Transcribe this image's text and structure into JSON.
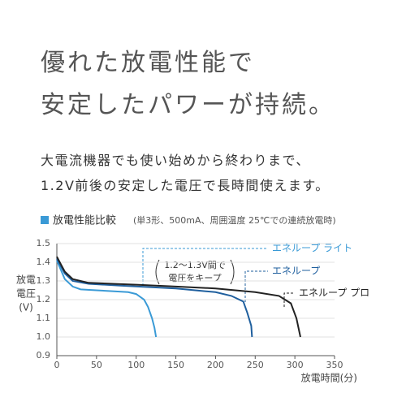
{
  "headline": [
    "優れた放電性能で",
    "安定したパワーが持続。"
  ],
  "body": [
    "大電流機器でも使い始めから終わりまで、",
    "1.2V前後の安定した電圧で長時間使えます。"
  ],
  "chart_data": {
    "type": "line",
    "title": "放電性能比較",
    "subtitle": "(単3形、500mA、周囲温度 25℃での連続放電時)",
    "ylabel": [
      "放電",
      "電圧",
      "(V)"
    ],
    "xlabel": "放電時間(分)",
    "annotation": [
      "1.2〜1.3V間で",
      "電圧をキープ"
    ],
    "xlim": [
      0,
      350
    ],
    "xticks": [
      0,
      50,
      100,
      150,
      200,
      250,
      300,
      350
    ],
    "ylim": [
      0.9,
      1.5
    ],
    "yticks": [
      0.9,
      {
        "value": 1,
        "label": "1.0"
      },
      1.1,
      1.2,
      1.3,
      1.4,
      1.5
    ],
    "grid": true,
    "series": [
      {
        "name": "エネループ ライト",
        "color": "#3a9ad6",
        "x": [
          0,
          5,
          10,
          20,
          30,
          50,
          70,
          90,
          100,
          110,
          115,
          120,
          123,
          125
        ],
        "values": [
          1.41,
          1.36,
          1.31,
          1.27,
          1.255,
          1.25,
          1.245,
          1.24,
          1.23,
          1.2,
          1.16,
          1.1,
          1.05,
          1.0
        ]
      },
      {
        "name": "エネループ",
        "color": "#1f5f9e",
        "x": [
          0,
          5,
          10,
          20,
          40,
          80,
          150,
          200,
          220,
          235,
          240,
          245,
          246
        ],
        "values": [
          1.42,
          1.38,
          1.34,
          1.3,
          1.285,
          1.275,
          1.26,
          1.24,
          1.22,
          1.19,
          1.13,
          1.06,
          1.0
        ]
      },
      {
        "name": "エネループ プロ",
        "color": "#222222",
        "x": [
          0,
          5,
          10,
          20,
          40,
          100,
          150,
          200,
          250,
          280,
          295,
          302,
          307
        ],
        "values": [
          1.43,
          1.39,
          1.35,
          1.31,
          1.29,
          1.28,
          1.27,
          1.26,
          1.24,
          1.22,
          1.18,
          1.1,
          1.0
        ]
      }
    ]
  }
}
